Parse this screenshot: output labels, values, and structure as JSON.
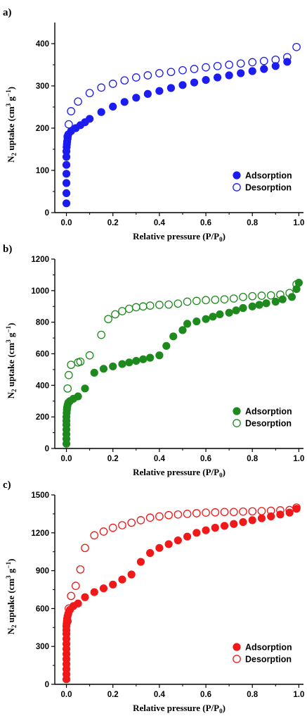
{
  "chart_data": [
    {
      "type": "scatter",
      "panel_label": "a)",
      "xlabel": "Relative pressure (P/P₀)",
      "ylabel": "N₂ uptake (cm³ g⁻¹)",
      "xlim": [
        -0.05,
        1.02
      ],
      "ylim": [
        0,
        450
      ],
      "xticks": [
        "0.0",
        "0.2",
        "0.4",
        "0.6",
        "0.8",
        "1.0"
      ],
      "yticks": [
        "0",
        "100",
        "200",
        "300",
        "400"
      ],
      "legend_position": "bottom-right",
      "color": "#1c1cf0",
      "series": [
        {
          "name": "Adsorption",
          "marker": "filled",
          "x": [
            0.0,
            0.0,
            0.0,
            0.0,
            0.0,
            0.0,
            0.0,
            0.001,
            0.002,
            0.003,
            0.005,
            0.008,
            0.02,
            0.04,
            0.06,
            0.08,
            0.1,
            0.15,
            0.2,
            0.25,
            0.3,
            0.35,
            0.4,
            0.45,
            0.5,
            0.55,
            0.6,
            0.65,
            0.7,
            0.75,
            0.8,
            0.85,
            0.9,
            0.95
          ],
          "y": [
            22,
            46,
            70,
            92,
            113,
            132,
            145,
            155,
            162,
            168,
            175,
            185,
            193,
            200,
            207,
            214,
            222,
            238,
            251,
            262,
            272,
            281,
            288,
            295,
            302,
            308,
            314,
            320,
            325,
            330,
            335,
            340,
            347,
            357
          ]
        },
        {
          "name": "Desorption",
          "marker": "open",
          "x": [
            0.005,
            0.01,
            0.02,
            0.05,
            0.1,
            0.15,
            0.2,
            0.25,
            0.3,
            0.35,
            0.4,
            0.45,
            0.5,
            0.55,
            0.6,
            0.65,
            0.7,
            0.75,
            0.8,
            0.85,
            0.9,
            0.95,
            0.99
          ],
          "y": [
            180,
            209,
            240,
            263,
            283,
            296,
            305,
            313,
            320,
            325,
            330,
            333,
            337,
            340,
            344,
            347,
            350,
            353,
            356,
            359,
            362,
            368,
            392
          ]
        }
      ]
    },
    {
      "type": "scatter",
      "panel_label": "b)",
      "xlabel": "Relative pressure (P/P₀)",
      "ylabel": "N₂ uptake (cm³ g⁻¹)",
      "xlim": [
        -0.05,
        1.02
      ],
      "ylim": [
        0,
        1200
      ],
      "xticks": [
        "0.0",
        "0.2",
        "0.4",
        "0.6",
        "0.8",
        "1.0"
      ],
      "yticks": [
        "0",
        "200",
        "400",
        "600",
        "800",
        "1000",
        "1200"
      ],
      "legend_position": "bottom-right",
      "color": "#1e8a1e",
      "series": [
        {
          "name": "Adsorption",
          "marker": "filled",
          "x": [
            0.0,
            0.0,
            0.0,
            0.0,
            0.0,
            0.0,
            0.0,
            0.001,
            0.002,
            0.003,
            0.005,
            0.008,
            0.015,
            0.03,
            0.05,
            0.08,
            0.12,
            0.16,
            0.2,
            0.24,
            0.27,
            0.3,
            0.33,
            0.36,
            0.4,
            0.43,
            0.46,
            0.5,
            0.52,
            0.56,
            0.6,
            0.63,
            0.66,
            0.7,
            0.73,
            0.76,
            0.8,
            0.83,
            0.86,
            0.9,
            0.93,
            0.97,
            0.99,
            1.0
          ],
          "y": [
            30,
            60,
            90,
            120,
            150,
            175,
            200,
            225,
            245,
            260,
            275,
            290,
            300,
            315,
            330,
            380,
            480,
            505,
            520,
            535,
            545,
            555,
            565,
            575,
            590,
            650,
            710,
            750,
            790,
            805,
            820,
            835,
            850,
            860,
            875,
            890,
            900,
            910,
            920,
            930,
            945,
            960,
            1010,
            1050
          ]
        },
        {
          "name": "Desorption",
          "marker": "open",
          "x": [
            0.005,
            0.01,
            0.02,
            0.05,
            0.06,
            0.1,
            0.15,
            0.18,
            0.21,
            0.24,
            0.27,
            0.3,
            0.33,
            0.36,
            0.4,
            0.44,
            0.48,
            0.52,
            0.56,
            0.6,
            0.64,
            0.68,
            0.72,
            0.76,
            0.8,
            0.84,
            0.88,
            0.92,
            0.96,
            0.99
          ],
          "y": [
            380,
            465,
            530,
            545,
            550,
            590,
            720,
            820,
            850,
            870,
            885,
            895,
            900,
            905,
            910,
            912,
            918,
            930,
            935,
            940,
            942,
            945,
            950,
            960,
            965,
            968,
            970,
            975,
            985,
            1040
          ]
        }
      ]
    },
    {
      "type": "scatter",
      "panel_label": "c)",
      "xlabel": "Relative pressure (P/P₀)",
      "ylabel": "N₂ uptake (cm³ g⁻¹)",
      "xlim": [
        -0.05,
        1.02
      ],
      "ylim": [
        0,
        1500
      ],
      "xticks": [
        "0.0",
        "0.2",
        "0.4",
        "0.6",
        "0.8",
        "1.0"
      ],
      "yticks": [
        "0",
        "300",
        "600",
        "900",
        "1200",
        "1500"
      ],
      "legend_position": "bottom-right",
      "color": "#f01818",
      "series": [
        {
          "name": "Adsorption",
          "marker": "filled",
          "x": [
            0.0,
            0.0,
            0.0,
            0.0,
            0.0,
            0.0,
            0.0,
            0.0,
            0.0,
            0.0,
            0.0,
            0.0,
            0.001,
            0.002,
            0.003,
            0.005,
            0.008,
            0.015,
            0.03,
            0.05,
            0.08,
            0.12,
            0.16,
            0.2,
            0.24,
            0.28,
            0.32,
            0.36,
            0.4,
            0.44,
            0.48,
            0.52,
            0.56,
            0.6,
            0.64,
            0.68,
            0.72,
            0.76,
            0.8,
            0.84,
            0.88,
            0.92,
            0.96,
            0.99
          ],
          "y": [
            40,
            80,
            120,
            160,
            200,
            240,
            280,
            320,
            360,
            400,
            430,
            460,
            480,
            500,
            520,
            540,
            560,
            590,
            620,
            640,
            690,
            730,
            760,
            790,
            830,
            870,
            970,
            1040,
            1080,
            1110,
            1140,
            1170,
            1200,
            1220,
            1240,
            1255,
            1270,
            1285,
            1300,
            1315,
            1330,
            1345,
            1360,
            1390
          ]
        },
        {
          "name": "Desorption",
          "marker": "open",
          "x": [
            0.005,
            0.01,
            0.02,
            0.04,
            0.06,
            0.08,
            0.12,
            0.16,
            0.2,
            0.24,
            0.28,
            0.32,
            0.36,
            0.4,
            0.44,
            0.48,
            0.52,
            0.56,
            0.6,
            0.64,
            0.68,
            0.72,
            0.76,
            0.8,
            0.84,
            0.88,
            0.92,
            0.96,
            0.99
          ],
          "y": [
            500,
            600,
            700,
            780,
            910,
            1080,
            1180,
            1210,
            1240,
            1260,
            1280,
            1300,
            1320,
            1330,
            1340,
            1345,
            1350,
            1355,
            1360,
            1362,
            1365,
            1365,
            1368,
            1370,
            1372,
            1375,
            1378,
            1380,
            1400
          ]
        }
      ]
    }
  ]
}
